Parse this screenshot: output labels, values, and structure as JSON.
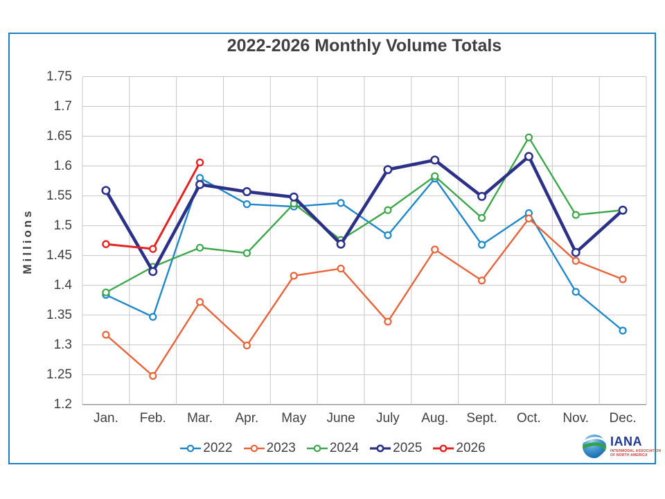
{
  "colors": {
    "frame_border": "#1a7fc4",
    "grid": "#c7c7c7",
    "axis": "#8f8f8f",
    "text": "#3f3f3f",
    "marker_fill": "#ffffff",
    "logo_navy": "#20398f",
    "logo_tagline": "#c04030"
  },
  "chart_data": {
    "type": "line",
    "title": "2022-2026 Monthly Volume Totals",
    "xlabel": "",
    "ylabel": "Millions",
    "categories": [
      "Jan.",
      "Feb.",
      "Mar.",
      "Apr.",
      "May",
      "June",
      "July",
      "Aug.",
      "Sept.",
      "Oct.",
      "Nov.",
      "Dec."
    ],
    "ylim": [
      1.2,
      1.75
    ],
    "ytick_step": 0.05,
    "grid": true,
    "legend_position": "bottom",
    "series": [
      {
        "name": "2022",
        "color": "#1e87c9",
        "line_width": 2.4,
        "marker_radius": 4.5,
        "marker_stroke": 2.2,
        "values": [
          1.384,
          1.347,
          1.58,
          1.536,
          1.532,
          1.538,
          1.484,
          1.579,
          1.468,
          1.521,
          1.389,
          1.324
        ]
      },
      {
        "name": "2023",
        "color": "#e7643b",
        "line_width": 2.4,
        "marker_radius": 4.5,
        "marker_stroke": 2.2,
        "values": [
          1.317,
          1.248,
          1.372,
          1.299,
          1.416,
          1.428,
          1.339,
          1.46,
          1.408,
          1.512,
          1.441,
          1.41
        ]
      },
      {
        "name": "2024",
        "color": "#3da64a",
        "line_width": 2.4,
        "marker_radius": 4.5,
        "marker_stroke": 2.2,
        "values": [
          1.388,
          1.431,
          1.463,
          1.454,
          1.537,
          1.476,
          1.526,
          1.583,
          1.513,
          1.648,
          1.518,
          1.526
        ]
      },
      {
        "name": "2025",
        "color": "#2c3188",
        "line_width": 4.6,
        "marker_radius": 5.2,
        "marker_stroke": 2.6,
        "values": [
          1.559,
          1.423,
          1.569,
          1.557,
          1.548,
          1.469,
          1.594,
          1.61,
          1.549,
          1.616,
          1.455,
          1.526
        ]
      },
      {
        "name": "2026",
        "color": "#e32322",
        "line_width": 3.0,
        "marker_radius": 4.5,
        "marker_stroke": 2.4,
        "values": [
          1.469,
          1.461,
          1.606,
          null,
          null,
          null,
          null,
          null,
          null,
          null,
          null,
          null
        ]
      }
    ]
  },
  "logo": {
    "name": "IANA",
    "tagline_line1": "INTERMODAL ASSOCIATION",
    "tagline_line2": "OF NORTH AMERICA"
  }
}
